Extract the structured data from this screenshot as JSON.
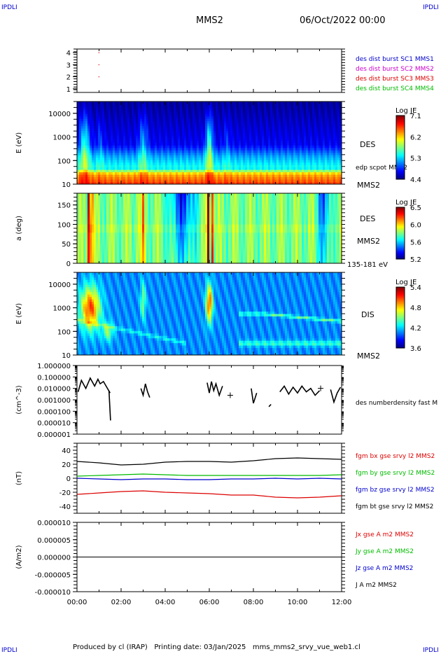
{
  "header": {
    "corner_label": "IPDLI",
    "title": "MMS2",
    "date": "06/Oct/2022 00:00"
  },
  "footer": {
    "text": "Produced by cl (IRAP)   Printing date: 03/Jan/2025   mms_mms2_srvy_vue_web1.cl"
  },
  "colors": {
    "blue": "#0000cc",
    "magenta": "#cc00cc",
    "red": "#dd0000",
    "green": "#00bb00",
    "black": "#000000"
  },
  "chart_data": [
    {
      "id": "panel1",
      "type": "scatter",
      "ylim": [
        0.7,
        4.3
      ],
      "yticks": [
        "1",
        "2",
        "3",
        "4"
      ],
      "legend": [
        {
          "text": "des dist burst SC1 MMS1",
          "color": "#0000cc"
        },
        {
          "text": "des dist burst SC2 MMS2",
          "color": "#cc00cc"
        },
        {
          "text": "des dist burst SC3 MMS3",
          "color": "#dd0000"
        },
        {
          "text": "des dist burst SC4 MMS4",
          "color": "#00bb00"
        }
      ],
      "points": [
        {
          "x": 0.5,
          "y": 4.0
        },
        {
          "x": 0.5,
          "y": 3.0
        },
        {
          "x": 0.5,
          "y": 2.0
        }
      ]
    },
    {
      "id": "panel2",
      "type": "heatmap",
      "ylabel": "E (eV)",
      "yticks": [
        "10",
        "100",
        "1000",
        "10000"
      ],
      "ylog": [
        1,
        4.5
      ],
      "right_labels": [
        "DES",
        "edp scpot MMS2",
        "MMS2"
      ],
      "colorbar": {
        "title": "Log JE",
        "ticks": [
          "7.1",
          "6.2",
          "5.3",
          "4.4"
        ]
      }
    },
    {
      "id": "panel3",
      "type": "heatmap",
      "ylabel": "a (deg)",
      "yticks": [
        "0",
        "50",
        "100",
        "150"
      ],
      "ylim": [
        0,
        180
      ],
      "right_labels": [
        "DES",
        "MMS2",
        "135-181 eV"
      ],
      "colorbar": {
        "title": "Log JE",
        "ticks": [
          "6.5",
          "6.0",
          "5.6",
          "5.2"
        ]
      }
    },
    {
      "id": "panel4",
      "type": "heatmap",
      "ylabel": "E (eV)",
      "yticks": [
        "10",
        "100",
        "1000",
        "10000"
      ],
      "ylog": [
        1,
        4.5
      ],
      "right_labels": [
        "DIS",
        "MMS2"
      ],
      "colorbar": {
        "title": "Log JE",
        "ticks": [
          "5.4",
          "4.8",
          "4.2",
          "3.6"
        ]
      }
    },
    {
      "id": "panel5",
      "type": "line",
      "ylabel": "(cm^-3)",
      "yticks": [
        "0.000001",
        "0.000010",
        "0.000100",
        "0.001000",
        "0.010000",
        "0.100000",
        "1.000000"
      ],
      "ylog": [
        -6,
        0
      ],
      "legend": [
        {
          "text": "des numberdensity fast M",
          "color": "#000000"
        }
      ],
      "segments": [
        {
          "x": [
            0.05,
            0.2,
            0.4,
            0.6,
            0.8,
            0.95,
            1.05,
            1.2,
            1.35,
            1.5
          ],
          "y": [
            -2.3,
            -1.3,
            -2.0,
            -1.1,
            -1.8,
            -1.2,
            -1.6,
            -1.4,
            -1.9,
            -2.4
          ]
        },
        {
          "x": [
            1.45,
            1.52
          ],
          "y": [
            -2.2,
            -4.8
          ]
        },
        {
          "x": [
            2.9,
            3.0,
            3.1,
            3.2,
            3.3
          ],
          "y": [
            -2.0,
            -2.6,
            -1.6,
            -2.3,
            -2.8
          ]
        },
        {
          "x": [
            5.9,
            6.0,
            6.1,
            6.2,
            6.3,
            6.45,
            6.6
          ],
          "y": [
            -1.5,
            -2.4,
            -1.4,
            -2.2,
            -1.6,
            -2.6,
            -1.8
          ]
        },
        {
          "x": [
            7.9,
            8.0,
            8.15
          ],
          "y": [
            -2.0,
            -3.3,
            -2.4
          ]
        },
        {
          "x": [
            8.7,
            8.8
          ],
          "y": [
            -3.6,
            -3.4
          ]
        },
        {
          "x": [
            9.2,
            9.4,
            9.6,
            9.8,
            10.0,
            10.2,
            10.4,
            10.6,
            10.8,
            11.0
          ],
          "y": [
            -2.3,
            -1.8,
            -2.5,
            -1.9,
            -2.4,
            -1.8,
            -2.3,
            -2.0,
            -2.6,
            -2.2
          ]
        },
        {
          "x": [
            11.5,
            11.65,
            11.8,
            11.95
          ],
          "y": [
            -2.1,
            -3.2,
            -2.4,
            -1.9
          ]
        }
      ],
      "markers": [
        {
          "x": 6.95,
          "y": -2.6
        },
        {
          "x": 11.05,
          "y": -2.0
        }
      ]
    },
    {
      "id": "panel6",
      "type": "line",
      "ylabel": "(nT)",
      "yticks": [
        "-40",
        "-20",
        "0",
        "20",
        "40"
      ],
      "ylim": [
        -50,
        50
      ],
      "legend": [
        {
          "text": "fgm bx gse srvy l2 MMS2",
          "color": "#dd0000"
        },
        {
          "text": "fgm by gse srvy l2 MMS2",
          "color": "#00bb00"
        },
        {
          "text": "fgm bz gse srvy l2 MMS2",
          "color": "#0000cc"
        },
        {
          "text": "fgm bt gse srvy l2 MMS2",
          "color": "#000000"
        }
      ],
      "series": [
        {
          "name": "fgm bx gse srvy l2 MMS2",
          "color": "#dd0000",
          "x": [
            0,
            1,
            2,
            3,
            4,
            5,
            6,
            7,
            8,
            9,
            10,
            11,
            12
          ],
          "values": [
            -23,
            -21,
            -19,
            -18,
            -20,
            -21,
            -22,
            -24,
            -24,
            -27,
            -28,
            -27,
            -25
          ]
        },
        {
          "name": "fgm by gse srvy l2 MMS2",
          "color": "#00bb00",
          "x": [
            0,
            1,
            2,
            3,
            4,
            5,
            6,
            7,
            8,
            9,
            10,
            11,
            12
          ],
          "values": [
            3,
            4,
            5,
            6,
            5,
            4,
            4,
            4,
            4,
            4,
            4,
            4,
            5
          ]
        },
        {
          "name": "fgm bz gse srvy l2 MMS2",
          "color": "#0000cc",
          "x": [
            0,
            1,
            2,
            3,
            4,
            5,
            6,
            7,
            8,
            9,
            10,
            11,
            12
          ],
          "values": [
            0,
            -1,
            -2,
            -1,
            -1,
            -2,
            -2,
            -1,
            -1,
            0,
            -1,
            0,
            -1
          ]
        },
        {
          "name": "fgm bt gse srvy l2 MMS2",
          "color": "#000000",
          "x": [
            0,
            1,
            2,
            3,
            4,
            5,
            6,
            7,
            8,
            9,
            10,
            11,
            12
          ],
          "values": [
            24,
            22,
            19,
            20,
            23,
            24,
            24,
            23,
            25,
            28,
            29,
            28,
            27
          ]
        }
      ]
    },
    {
      "id": "panel7",
      "type": "line",
      "ylabel": "(A/m2)",
      "yticks": [
        "-0.000010",
        "-0.000005",
        "0.000000",
        "0.000005",
        "0.000010"
      ],
      "ylim": [
        -1e-05,
        1e-05
      ],
      "xlim": [
        0,
        12
      ],
      "xticks": [
        "00:00",
        "02:00",
        "04:00",
        "06:00",
        "08:00",
        "10:00",
        "12:00"
      ],
      "legend": [
        {
          "text": "Jx gse A m2 MMS2",
          "color": "#dd0000"
        },
        {
          "text": "Jy gse A m2 MMS2",
          "color": "#00bb00"
        },
        {
          "text": "Jz gse A m2 MMS2",
          "color": "#0000cc"
        },
        {
          "text": "J A m2 MMS2",
          "color": "#000000"
        }
      ],
      "series": [
        {
          "name": "J A m2 MMS2",
          "color": "#000000",
          "x": [
            0,
            12
          ],
          "values": [
            0,
            0
          ]
        }
      ]
    }
  ]
}
